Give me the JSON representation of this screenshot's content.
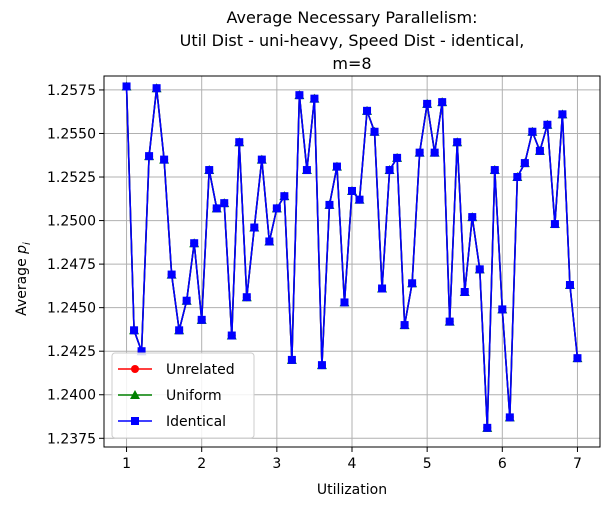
{
  "chart_data": {
    "type": "line",
    "title_lines": [
      "Average Necessary Parallelism:",
      "Util Dist - uni-heavy, Speed Dist - identical,",
      "m=8"
    ],
    "xlabel": "Utilization",
    "ylabel": "Average p_i",
    "xlim": [
      0.7,
      7.3
    ],
    "ylim": [
      1.237,
      1.2583
    ],
    "xticks": [
      1,
      2,
      3,
      4,
      5,
      6,
      7
    ],
    "yticks": [
      1.2375,
      1.24,
      1.2425,
      1.245,
      1.2475,
      1.25,
      1.2525,
      1.255,
      1.2575
    ],
    "ytick_labels": [
      "1.2375",
      "1.2400",
      "1.2425",
      "1.2450",
      "1.2475",
      "1.2500",
      "1.2525",
      "1.2550",
      "1.2575"
    ],
    "grid": true,
    "legend_position": "lower-left",
    "x": [
      1.0,
      1.1,
      1.2,
      1.3,
      1.4,
      1.5,
      1.6,
      1.7,
      1.8,
      1.9,
      2.0,
      2.1,
      2.2,
      2.3,
      2.4,
      2.5,
      2.6,
      2.7,
      2.8,
      2.9,
      3.0,
      3.1,
      3.2,
      3.3,
      3.4,
      3.5,
      3.6,
      3.7,
      3.8,
      3.9,
      4.0,
      4.1,
      4.2,
      4.3,
      4.4,
      4.5,
      4.6,
      4.7,
      4.8,
      4.9,
      5.0,
      5.1,
      5.2,
      5.3,
      5.4,
      5.5,
      5.6,
      5.7,
      5.8,
      5.9,
      6.0,
      6.1,
      6.2,
      6.3,
      6.4,
      6.5,
      6.6,
      6.7,
      6.8,
      6.9,
      7.0
    ],
    "series": [
      {
        "name": "Unrelated",
        "color": "#ff0000",
        "marker": "circle",
        "values": [
          1.2577,
          1.2437,
          1.2425,
          1.2537,
          1.2576,
          1.2535,
          1.2469,
          1.2437,
          1.2454,
          1.2487,
          1.2443,
          1.2529,
          1.2507,
          1.251,
          1.2434,
          1.2545,
          1.2456,
          1.2496,
          1.2535,
          1.2488,
          1.2507,
          1.2514,
          1.242,
          1.2572,
          1.2529,
          1.257,
          1.2417,
          1.2509,
          1.2531,
          1.2453,
          1.2517,
          1.2512,
          1.2563,
          1.2551,
          1.2461,
          1.2529,
          1.2536,
          1.244,
          1.2464,
          1.2539,
          1.2567,
          1.2539,
          1.2568,
          1.2442,
          1.2545,
          1.2459,
          1.2502,
          1.2472,
          1.2381,
          1.2529,
          1.2449,
          1.2387,
          1.2525,
          1.2533,
          1.2551,
          1.254,
          1.2555,
          1.2498,
          1.2561,
          1.2463,
          1.2421
        ]
      },
      {
        "name": "Uniform",
        "color": "#008000",
        "marker": "triangle",
        "values": [
          1.2577,
          1.2437,
          1.2425,
          1.2537,
          1.2576,
          1.2535,
          1.2469,
          1.2437,
          1.2454,
          1.2487,
          1.2443,
          1.2529,
          1.2507,
          1.251,
          1.2434,
          1.2545,
          1.2456,
          1.2496,
          1.2535,
          1.2488,
          1.2507,
          1.2514,
          1.242,
          1.2572,
          1.2529,
          1.257,
          1.2417,
          1.2509,
          1.2531,
          1.2453,
          1.2517,
          1.2512,
          1.2563,
          1.2551,
          1.2461,
          1.2529,
          1.2536,
          1.244,
          1.2464,
          1.2539,
          1.2567,
          1.2539,
          1.2568,
          1.2442,
          1.2545,
          1.2459,
          1.2502,
          1.2472,
          1.2381,
          1.2529,
          1.2449,
          1.2387,
          1.2525,
          1.2533,
          1.2551,
          1.254,
          1.2555,
          1.2498,
          1.2561,
          1.2463,
          1.2421
        ]
      },
      {
        "name": "Identical",
        "color": "#0000ff",
        "marker": "square",
        "values": [
          1.2577,
          1.2437,
          1.2425,
          1.2537,
          1.2576,
          1.2535,
          1.2469,
          1.2437,
          1.2454,
          1.2487,
          1.2443,
          1.2529,
          1.2507,
          1.251,
          1.2434,
          1.2545,
          1.2456,
          1.2496,
          1.2535,
          1.2488,
          1.2507,
          1.2514,
          1.242,
          1.2572,
          1.2529,
          1.257,
          1.2417,
          1.2509,
          1.2531,
          1.2453,
          1.2517,
          1.2512,
          1.2563,
          1.2551,
          1.2461,
          1.2529,
          1.2536,
          1.244,
          1.2464,
          1.2539,
          1.2567,
          1.2539,
          1.2568,
          1.2442,
          1.2545,
          1.2459,
          1.2502,
          1.2472,
          1.2381,
          1.2529,
          1.2449,
          1.2387,
          1.2525,
          1.2533,
          1.2551,
          1.254,
          1.2555,
          1.2498,
          1.2561,
          1.2463,
          1.2421
        ]
      }
    ]
  }
}
